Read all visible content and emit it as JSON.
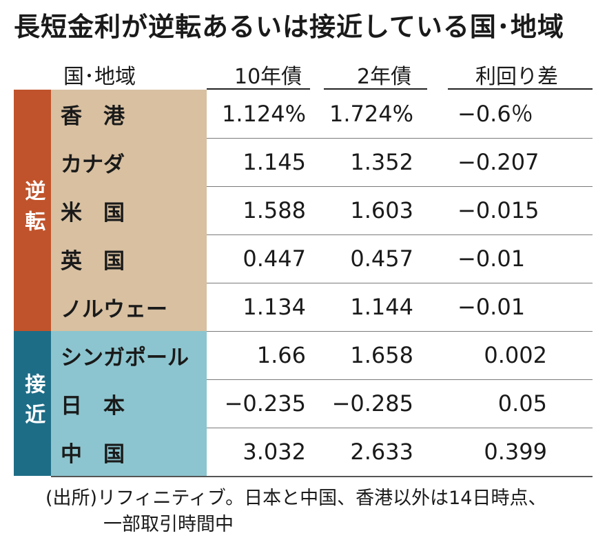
{
  "title": "長短金利が逆転あるいは接近している国･地域",
  "header": {
    "country": "国･地域",
    "y10": "10年債",
    "y2": "2年債",
    "spread": "利回り差"
  },
  "groups": {
    "inverted": "逆転",
    "near": "接近"
  },
  "rows": [
    {
      "name": "香　港",
      "y10": "1.124%",
      "y2": "1.724%",
      "spread": "−0.6％"
    },
    {
      "name": "カナダ",
      "y10": "1.145",
      "y2": "1.352",
      "spread": "−0.207"
    },
    {
      "name": "米　国",
      "y10": "1.588",
      "y2": "1.603",
      "spread": "−0.015"
    },
    {
      "name": "英　国",
      "y10": "0.447",
      "y2": "0.457",
      "spread": "−0.01"
    },
    {
      "name": "ノルウェー",
      "y10": "1.134",
      "y2": "1.144",
      "spread": "−0.01"
    },
    {
      "name": "シンガポール",
      "y10": "1.66",
      "y2": "1.658",
      "spread": "0.002"
    },
    {
      "name": "日　本",
      "y10": "−0.235",
      "y2": "−0.285",
      "spread": "0.05"
    },
    {
      "name": "中　国",
      "y10": "3.032",
      "y2": "2.633",
      "spread": "0.399"
    }
  ],
  "footer": {
    "line1": "(出所)リフィニティブ。日本と中国、香港以外は14日時点、",
    "line2": "一部取引時間中"
  },
  "colors": {
    "inverted_bar": "#c0532b",
    "inverted_cell": "#d8c0a1",
    "near_bar": "#1e6d87",
    "near_cell": "#8cc5cf"
  }
}
